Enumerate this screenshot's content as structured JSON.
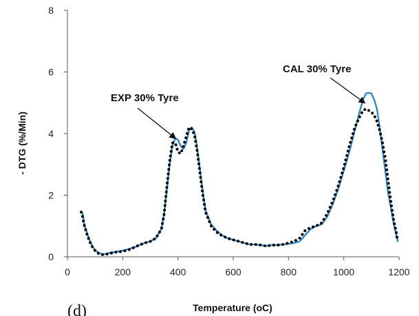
{
  "chart_data": {
    "type": "line",
    "panel_label": "(d)",
    "xlabel": "Temperature (oC)",
    "ylabel": "- DTG (%/Min)",
    "xlim": [
      0,
      1200
    ],
    "ylim": [
      0,
      8
    ],
    "xticks": [
      0,
      200,
      400,
      600,
      800,
      1000,
      1200
    ],
    "yticks": [
      0,
      2,
      4,
      6,
      8
    ],
    "grid": false,
    "series": [
      {
        "name": "CAL 30% Tyre",
        "style": "solid",
        "color": "#2e86c8",
        "x": [
          50,
          55,
          60,
          70,
          80,
          90,
          100,
          110,
          120,
          130,
          140,
          150,
          160,
          170,
          180,
          200,
          220,
          240,
          260,
          280,
          300,
          320,
          340,
          350,
          360,
          370,
          380,
          390,
          400,
          410,
          420,
          430,
          440,
          450,
          460,
          470,
          480,
          490,
          500,
          520,
          540,
          560,
          580,
          600,
          620,
          640,
          660,
          680,
          700,
          720,
          740,
          760,
          780,
          800,
          820,
          840,
          860,
          880,
          900,
          920,
          940,
          960,
          980,
          1000,
          1020,
          1040,
          1060,
          1070,
          1080,
          1090,
          1100,
          1110,
          1120,
          1130,
          1140,
          1150,
          1160,
          1170,
          1180,
          1190,
          1195
        ],
        "y": [
          1.45,
          1.4,
          1.1,
          0.8,
          0.55,
          0.35,
          0.22,
          0.15,
          0.1,
          0.08,
          0.1,
          0.12,
          0.15,
          0.15,
          0.17,
          0.2,
          0.25,
          0.3,
          0.38,
          0.45,
          0.5,
          0.6,
          0.9,
          1.4,
          2.2,
          3.0,
          3.6,
          3.85,
          3.8,
          3.6,
          3.5,
          3.7,
          4.1,
          4.2,
          4.05,
          3.5,
          2.8,
          2.1,
          1.5,
          1.05,
          0.85,
          0.7,
          0.6,
          0.55,
          0.5,
          0.45,
          0.4,
          0.4,
          0.38,
          0.35,
          0.38,
          0.38,
          0.4,
          0.42,
          0.45,
          0.5,
          0.7,
          0.9,
          1.0,
          1.05,
          1.3,
          1.7,
          2.2,
          2.8,
          3.4,
          4.1,
          4.8,
          5.1,
          5.3,
          5.32,
          5.3,
          5.1,
          4.8,
          4.2,
          3.5,
          2.8,
          2.1,
          1.6,
          1.1,
          0.7,
          0.5
        ]
      },
      {
        "name": "EXP 30% Tyre",
        "style": "dotted",
        "color": "#000000",
        "x": [
          50,
          55,
          60,
          70,
          80,
          90,
          100,
          110,
          120,
          130,
          140,
          150,
          160,
          170,
          180,
          200,
          220,
          240,
          260,
          280,
          300,
          320,
          340,
          350,
          360,
          370,
          380,
          390,
          400,
          410,
          420,
          430,
          440,
          450,
          460,
          470,
          480,
          490,
          500,
          520,
          540,
          560,
          580,
          600,
          620,
          640,
          660,
          680,
          700,
          720,
          740,
          760,
          780,
          800,
          820,
          840,
          860,
          880,
          900,
          920,
          940,
          960,
          980,
          1000,
          1020,
          1040,
          1060,
          1070,
          1080,
          1090,
          1100,
          1110,
          1120,
          1130,
          1140,
          1150,
          1160,
          1170,
          1180,
          1190,
          1195
        ],
        "y": [
          1.45,
          1.3,
          1.05,
          0.75,
          0.5,
          0.32,
          0.2,
          0.12,
          0.08,
          0.07,
          0.08,
          0.1,
          0.12,
          0.15,
          0.15,
          0.18,
          0.22,
          0.3,
          0.38,
          0.45,
          0.5,
          0.6,
          0.9,
          1.4,
          2.3,
          3.1,
          3.7,
          3.7,
          3.4,
          3.35,
          3.6,
          3.9,
          4.2,
          4.15,
          3.95,
          3.4,
          2.7,
          2.0,
          1.45,
          1.0,
          0.8,
          0.68,
          0.6,
          0.55,
          0.5,
          0.45,
          0.4,
          0.4,
          0.38,
          0.35,
          0.38,
          0.38,
          0.4,
          0.45,
          0.5,
          0.6,
          0.85,
          0.95,
          1.0,
          1.1,
          1.4,
          1.8,
          2.3,
          2.9,
          3.6,
          4.2,
          4.6,
          4.75,
          4.8,
          4.75,
          4.7,
          4.6,
          4.4,
          4.1,
          3.7,
          3.2,
          2.5,
          1.8,
          1.2,
          0.8,
          0.5
        ]
      }
    ],
    "annotations": [
      {
        "text": "EXP 30% Tyre",
        "points_to_x": 390,
        "points_to_y": 3.85
      },
      {
        "text": "CAL 30% Tyre",
        "points_to_x": 1075,
        "points_to_y": 5.0
      }
    ]
  }
}
